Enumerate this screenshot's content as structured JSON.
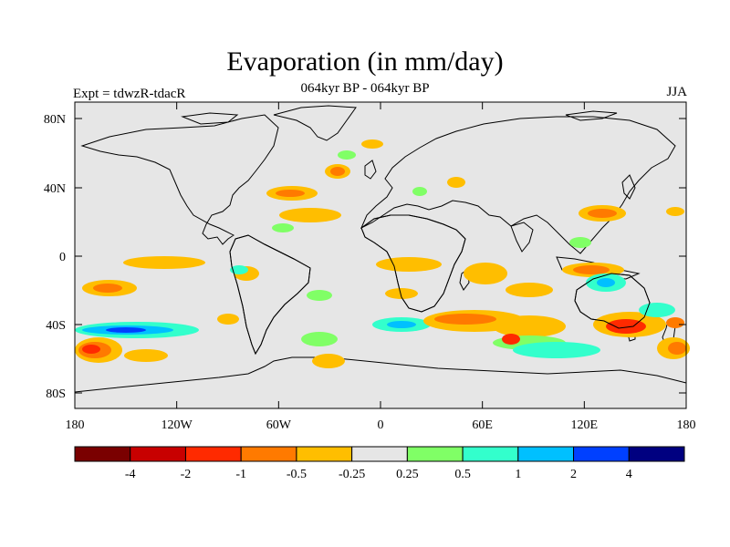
{
  "map": {
    "title": "Evaporation (in mm/day)",
    "subtitle": "064kyr BP - 064kyr BP",
    "left_label": "Expt = tdwzR-tdacR",
    "right_label": "JJA",
    "x_ticks": [
      "180",
      "120W",
      "60W",
      "0",
      "60E",
      "120E",
      "180"
    ],
    "y_ticks": [
      "80N",
      "40N",
      "0",
      "40S",
      "80S"
    ],
    "background_color": "#e6e6e6",
    "land_outline_color": "#000000"
  },
  "colorbar": {
    "colors": [
      "#7a0000",
      "#c80000",
      "#ff2a00",
      "#ff7a00",
      "#ffbe00",
      "#e6e6e6",
      "#80ff66",
      "#33ffcc",
      "#00c0ff",
      "#0040ff",
      "#000080"
    ],
    "labels": [
      "-4",
      "-2",
      "-1",
      "-0.5",
      "-0.25",
      "0.25",
      "0.5",
      "1",
      "2",
      "4"
    ]
  }
}
